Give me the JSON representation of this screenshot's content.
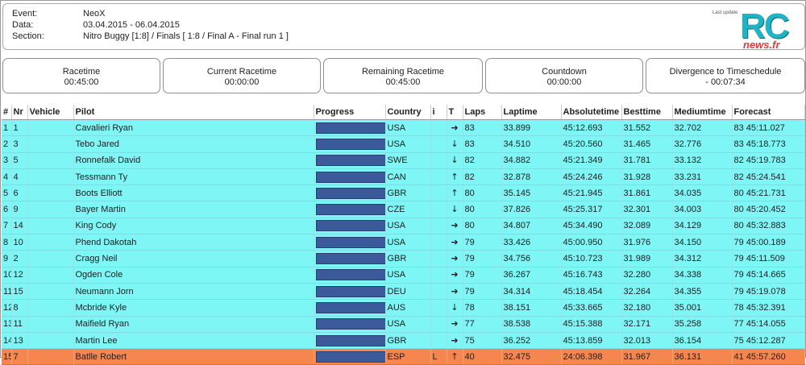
{
  "event": {
    "event_label": "Event:",
    "event_value": "NeoX",
    "date_label": "Data:",
    "date_value": "03.04.2015 - 06.04.2015",
    "section_label": "Section:",
    "section_value": "Nitro Buggy [1:8] / Finals [ 1:8 / Final A - Final run 1 ]",
    "last_update": "Last update"
  },
  "logo": {
    "rc": "RC",
    "news": "news.fr"
  },
  "timers": [
    {
      "label": "Racetime",
      "value": "00:45:00"
    },
    {
      "label": "Current Racetime",
      "value": "00:00:00"
    },
    {
      "label": "Remaining Racetime",
      "value": "00:45:00"
    },
    {
      "label": "Countdown",
      "value": "00:00:00"
    },
    {
      "label": "Divergence to Timeschedule",
      "value": "- 00:07:34"
    }
  ],
  "columns": [
    "#",
    "Nr",
    "Vehicle",
    "Pilot",
    "Progress",
    "Country",
    "i",
    "T",
    "Laps",
    "Laptime",
    "Absolutetime",
    "Besttime",
    "Mediumtime",
    "Forecast"
  ],
  "rows": [
    {
      "pos": "1",
      "nr": "1",
      "vehicle": "",
      "pilot": "Cavalieri Ryan",
      "progress": 1.0,
      "country": "USA",
      "i": "",
      "trend": "right",
      "laps": "83",
      "laptime": "33.899",
      "absolute": "45:12.693",
      "best": "31.552",
      "medium": "32.702",
      "forecast": "83 45:11.027"
    },
    {
      "pos": "2",
      "nr": "3",
      "vehicle": "",
      "pilot": "Tebo Jared",
      "progress": 1.0,
      "country": "USA",
      "i": "",
      "trend": "down",
      "laps": "83",
      "laptime": "34.510",
      "absolute": "45:20.560",
      "best": "31.465",
      "medium": "32.776",
      "forecast": "83 45:18.773"
    },
    {
      "pos": "3",
      "nr": "5",
      "vehicle": "",
      "pilot": "Ronnefalk David",
      "progress": 1.0,
      "country": "SWE",
      "i": "",
      "trend": "down",
      "laps": "82",
      "laptime": "34.882",
      "absolute": "45:21.349",
      "best": "31.781",
      "medium": "33.132",
      "forecast": "82 45:19.783"
    },
    {
      "pos": "4",
      "nr": "4",
      "vehicle": "",
      "pilot": "Tessmann Ty",
      "progress": 1.0,
      "country": "CAN",
      "i": "",
      "trend": "up",
      "laps": "82",
      "laptime": "32.878",
      "absolute": "45:24.246",
      "best": "31.928",
      "medium": "33.231",
      "forecast": "82 45:24.541"
    },
    {
      "pos": "5",
      "nr": "6",
      "vehicle": "",
      "pilot": "Boots Elliott",
      "progress": 1.0,
      "country": "GBR",
      "i": "",
      "trend": "up",
      "laps": "80",
      "laptime": "35.145",
      "absolute": "45:21.945",
      "best": "31.861",
      "medium": "34.035",
      "forecast": "80 45:21.731"
    },
    {
      "pos": "6",
      "nr": "9",
      "vehicle": "",
      "pilot": "Bayer Martin",
      "progress": 1.0,
      "country": "CZE",
      "i": "",
      "trend": "down",
      "laps": "80",
      "laptime": "37.826",
      "absolute": "45:25.317",
      "best": "32.301",
      "medium": "34.003",
      "forecast": "80 45:20.452"
    },
    {
      "pos": "7",
      "nr": "14",
      "vehicle": "",
      "pilot": "King Cody",
      "progress": 1.0,
      "country": "USA",
      "i": "",
      "trend": "right",
      "laps": "80",
      "laptime": "34.807",
      "absolute": "45:34.490",
      "best": "32.089",
      "medium": "34.129",
      "forecast": "80 45:32.883"
    },
    {
      "pos": "8",
      "nr": "10",
      "vehicle": "",
      "pilot": "Phend Dakotah",
      "progress": 1.0,
      "country": "USA",
      "i": "",
      "trend": "right",
      "laps": "79",
      "laptime": "33.426",
      "absolute": "45:00.950",
      "best": "31.976",
      "medium": "34.150",
      "forecast": "79 45:00.189"
    },
    {
      "pos": "9",
      "nr": "2",
      "vehicle": "",
      "pilot": "Cragg Neil",
      "progress": 1.0,
      "country": "GBR",
      "i": "",
      "trend": "right",
      "laps": "79",
      "laptime": "34.756",
      "absolute": "45:10.723",
      "best": "31.989",
      "medium": "34.312",
      "forecast": "79 45:11.509"
    },
    {
      "pos": "10",
      "nr": "12",
      "vehicle": "",
      "pilot": "Ogden Cole",
      "progress": 1.0,
      "country": "USA",
      "i": "",
      "trend": "right",
      "laps": "79",
      "laptime": "36.267",
      "absolute": "45:16.743",
      "best": "32.280",
      "medium": "34.338",
      "forecast": "79 45:14.665"
    },
    {
      "pos": "11",
      "nr": "15",
      "vehicle": "",
      "pilot": "Neumann Jorn",
      "progress": 1.0,
      "country": "DEU",
      "i": "",
      "trend": "right",
      "laps": "79",
      "laptime": "34.314",
      "absolute": "45:18.454",
      "best": "32.264",
      "medium": "34.355",
      "forecast": "79 45:19.078"
    },
    {
      "pos": "12",
      "nr": "8",
      "vehicle": "",
      "pilot": "Mcbride Kyle",
      "progress": 1.0,
      "country": "AUS",
      "i": "",
      "trend": "down",
      "laps": "78",
      "laptime": "38.151",
      "absolute": "45:33.665",
      "best": "32.180",
      "medium": "35.001",
      "forecast": "78 45:32.391"
    },
    {
      "pos": "13",
      "nr": "11",
      "vehicle": "",
      "pilot": "Maifield Ryan",
      "progress": 1.0,
      "country": "USA",
      "i": "",
      "trend": "right",
      "laps": "77",
      "laptime": "38.538",
      "absolute": "45:15.388",
      "best": "32.171",
      "medium": "35.258",
      "forecast": "77 45:14.055"
    },
    {
      "pos": "14",
      "nr": "13",
      "vehicle": "",
      "pilot": "Martin Lee",
      "progress": 1.0,
      "country": "GBR",
      "i": "",
      "trend": "right",
      "laps": "75",
      "laptime": "36.252",
      "absolute": "45:13.859",
      "best": "32.013",
      "medium": "36.154",
      "forecast": "75 45:12.287"
    },
    {
      "pos": "15",
      "nr": "7",
      "vehicle": "",
      "pilot": "Batlle Robert",
      "progress": 1.0,
      "country": "ESP",
      "i": "L",
      "trend": "up",
      "laps": "40",
      "laptime": "32.475",
      "absolute": "24:06.398",
      "best": "31.967",
      "medium": "36.131",
      "forecast": "41 45:57.260",
      "active": true
    }
  ],
  "colors": {
    "row": "#7ef6f6",
    "active_row": "#f5864e",
    "progress_bar": "#3a5a9a"
  },
  "icons": {
    "right": "arrow-right-icon",
    "down": "arrow-down-icon",
    "up": "arrow-up-icon"
  }
}
